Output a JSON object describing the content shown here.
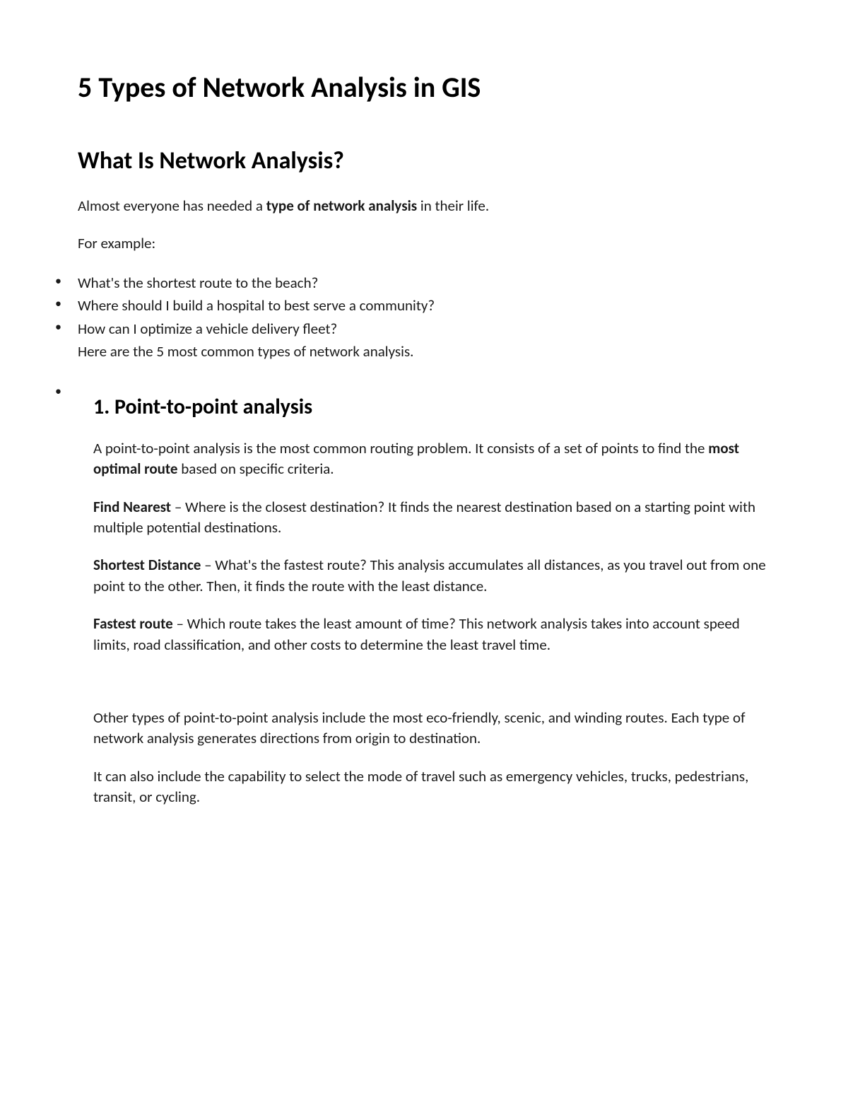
{
  "title": "5 Types of Network Analysis in GIS",
  "intro": {
    "heading": "What Is Network Analysis?",
    "para1_pre": "Almost everyone has needed a ",
    "para1_bold": "type of network analysis",
    "para1_post": " in their life.",
    "para2": "For example:",
    "bullets": [
      "What's the shortest route to the beach?",
      "Where should I build a hospital to best serve a community?",
      "How can I optimize a vehicle delivery fleet?"
    ],
    "followup": "Here are the 5 most common types of network analysis."
  },
  "section1": {
    "heading": "1. Point-to-point analysis",
    "para1_pre": "A point-to-point analysis is the most common routing problem. It consists of a set of points to find the ",
    "para1_bold": "most optimal route",
    "para1_post": " based on specific criteria.",
    "item1_label": "Find Nearest",
    "item1_text": " – Where is the closest destination? It finds the nearest destination based on a starting point with multiple potential destinations.",
    "item2_label": "Shortest Distance",
    "item2_text": " – What's the fastest route? This analysis accumulates all distances, as you travel out from one point to the other. Then, it finds the route with the least distance.",
    "item3_label": "Fastest route",
    "item3_text": " – Which route takes the least amount of time? This network analysis takes into account speed limits, road classification, and other costs to determine the least travel time.",
    "para2": "Other types of point-to-point analysis include the most eco-friendly, scenic, and winding routes. Each type of network analysis generates directions from origin to destination.",
    "para3": "It can also include the capability to select the mode of travel such as emergency vehicles, trucks, pedestrians, transit, or cycling."
  },
  "colors": {
    "text": "#000000",
    "background": "#ffffff"
  },
  "typography": {
    "h1_size": 40,
    "h2_size": 34,
    "h3_size": 30,
    "body_size": 21
  }
}
